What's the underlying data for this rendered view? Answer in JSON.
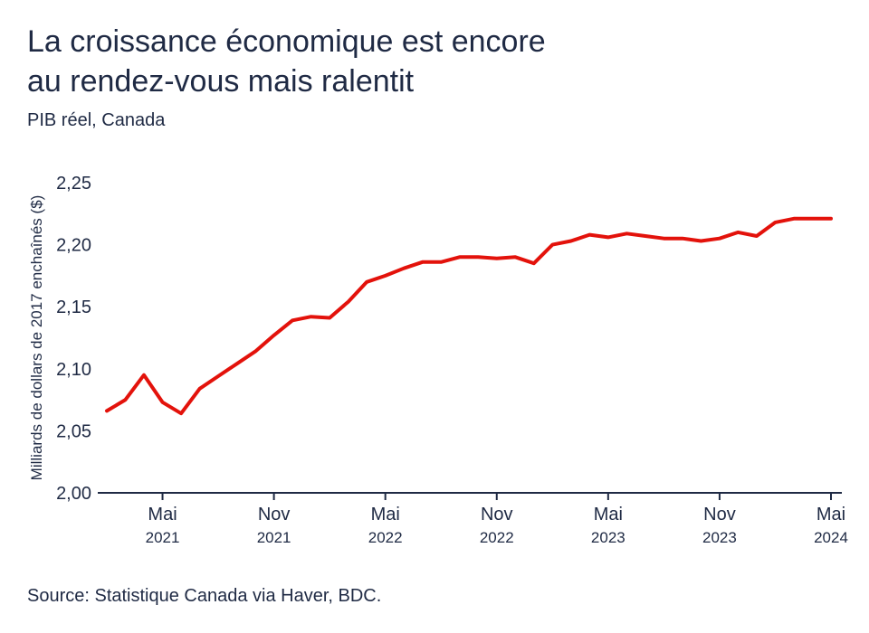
{
  "title_line1": "La croissance économique est encore",
  "title_line2": "au rendez-vous mais ralentit",
  "subtitle": "PIB réel, Canada",
  "source": "Source: Statistique Canada via Haver, BDC.",
  "colors": {
    "line": "#e3120b",
    "text": "#1f2a44",
    "axis": "#1f2a44"
  },
  "chart_data": {
    "type": "line",
    "ylabel": "Milliards de dollars de 2017 enchaînés ($)",
    "ylim": [
      2.0,
      2.25
    ],
    "yticks": [
      {
        "value": 2.0,
        "label": "2,00"
      },
      {
        "value": 2.05,
        "label": "2,05"
      },
      {
        "value": 2.1,
        "label": "2,10"
      },
      {
        "value": 2.15,
        "label": "2,15"
      },
      {
        "value": 2.2,
        "label": "2,20"
      },
      {
        "value": 2.25,
        "label": "2,25"
      }
    ],
    "xticks": [
      {
        "date": "2021-05",
        "month": "Mai",
        "year": "2021"
      },
      {
        "date": "2021-11",
        "month": "Nov",
        "year": "2021"
      },
      {
        "date": "2022-05",
        "month": "Mai",
        "year": "2022"
      },
      {
        "date": "2022-11",
        "month": "Nov",
        "year": "2022"
      },
      {
        "date": "2023-05",
        "month": "Mai",
        "year": "2023"
      },
      {
        "date": "2023-11",
        "month": "Nov",
        "year": "2023"
      },
      {
        "date": "2024-05",
        "month": "Mai",
        "year": "2024"
      }
    ],
    "xlim": [
      "2021-02",
      "2024-05"
    ],
    "grid": false,
    "series": [
      {
        "x": [
          "2021-02",
          "2021-03",
          "2021-04",
          "2021-05",
          "2021-06",
          "2021-07",
          "2021-08",
          "2021-09",
          "2021-10",
          "2021-11",
          "2021-12",
          "2022-01",
          "2022-02",
          "2022-03",
          "2022-04",
          "2022-05",
          "2022-06",
          "2022-07",
          "2022-08",
          "2022-09",
          "2022-10",
          "2022-11",
          "2022-12",
          "2023-01",
          "2023-02",
          "2023-03",
          "2023-04",
          "2023-05",
          "2023-06",
          "2023-07",
          "2023-08",
          "2023-09",
          "2023-10",
          "2023-11",
          "2023-12",
          "2024-01",
          "2024-02",
          "2024-03",
          "2024-04",
          "2024-05"
        ],
        "values": [
          2.066,
          2.075,
          2.095,
          2.073,
          2.064,
          2.084,
          2.094,
          2.104,
          2.114,
          2.127,
          2.139,
          2.142,
          2.141,
          2.154,
          2.17,
          2.175,
          2.181,
          2.186,
          2.186,
          2.19,
          2.19,
          2.189,
          2.19,
          2.185,
          2.2,
          2.203,
          2.208,
          2.206,
          2.209,
          2.207,
          2.205,
          2.205,
          2.203,
          2.205,
          2.21,
          2.207,
          2.218,
          2.221,
          2.221,
          2.221
        ]
      }
    ]
  }
}
